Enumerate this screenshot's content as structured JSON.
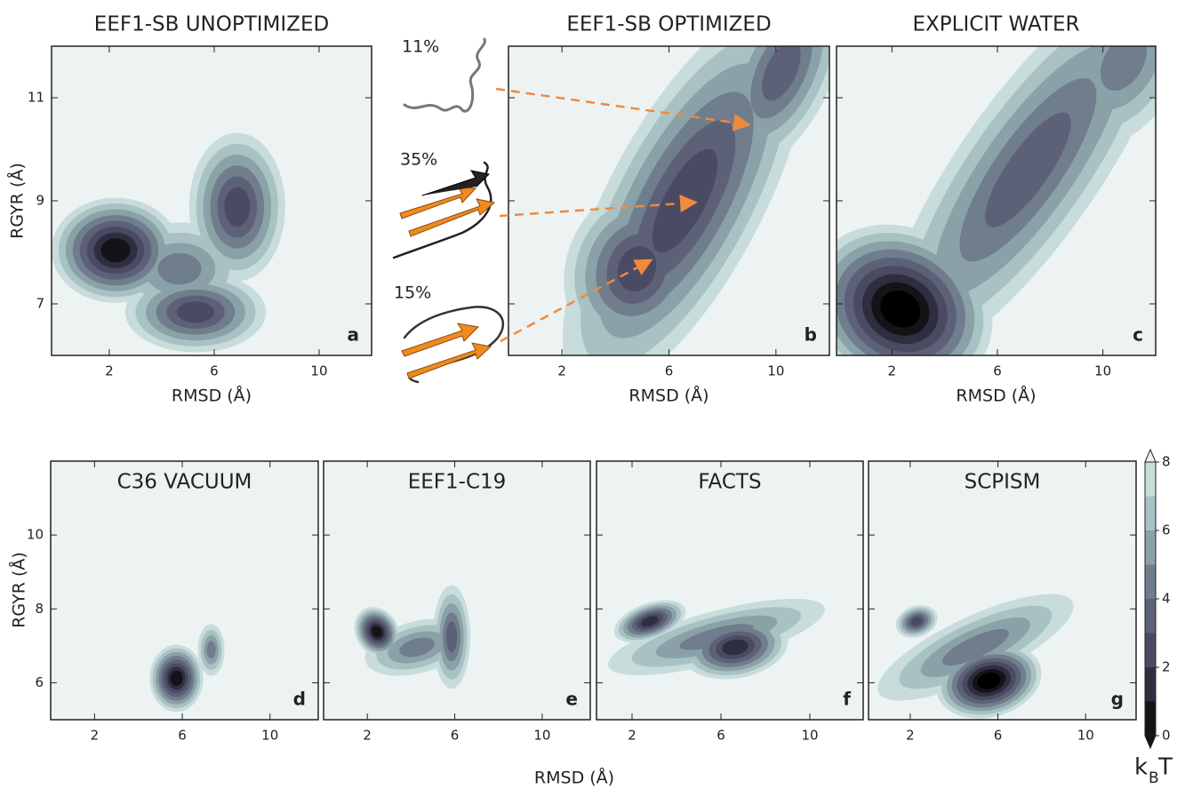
{
  "top_row": {
    "ylabel": "RGYR (Å)",
    "xlabel": "RMSD (Å)",
    "ylim": [
      6,
      12
    ],
    "yticks": [
      7,
      9,
      11
    ],
    "panels": [
      {
        "title": "EEF1-SB UNOPTIMIZED",
        "letter": "a",
        "xlim": [
          -0.2,
          12
        ],
        "xticks": [
          2,
          6,
          10
        ]
      },
      {
        "title": "EEF1-SB OPTIMIZED",
        "letter": "b",
        "xlim": [
          0,
          12
        ],
        "xticks": [
          2,
          6,
          10
        ]
      },
      {
        "title": "EXPLICIT WATER",
        "letter": "c",
        "xlim": [
          -0.1,
          12
        ],
        "xticks": [
          2,
          6,
          10
        ]
      }
    ]
  },
  "bottom_row": {
    "ylabel": "RGYR (Å)",
    "xlabel": "RMSD (Å)",
    "ylim": [
      5,
      12
    ],
    "yticks": [
      6,
      8,
      10
    ],
    "panels": [
      {
        "title": "C36 VACUUM",
        "letter": "d",
        "xlim": [
          0,
          12.2
        ],
        "xticks": [
          2,
          6,
          10
        ]
      },
      {
        "title": "EEF1-C19",
        "letter": "e",
        "xlim": [
          0,
          12.2
        ],
        "xticks": [
          2,
          6,
          10
        ]
      },
      {
        "title": "FACTS",
        "letter": "f",
        "xlim": [
          0.4,
          12.4
        ],
        "xticks": [
          2,
          6,
          10
        ]
      },
      {
        "title": "SCPISM",
        "letter": "g",
        "xlim": [
          0.1,
          12.3
        ],
        "xticks": [
          2,
          6,
          10
        ]
      }
    ]
  },
  "populations": [
    "11%",
    "35%",
    "15%"
  ],
  "colorbar": {
    "lim": [
      0,
      8
    ],
    "ticks": [
      0,
      2,
      4,
      6,
      8
    ],
    "label": [
      "k",
      "B",
      "T"
    ],
    "colors": [
      "#141318",
      "#2f2e40",
      "#4b4a63",
      "#5d6178",
      "#6f7d8c",
      "#8aa1a7",
      "#a8c2c3",
      "#c8dcdb",
      "#edf3f3"
    ]
  }
}
